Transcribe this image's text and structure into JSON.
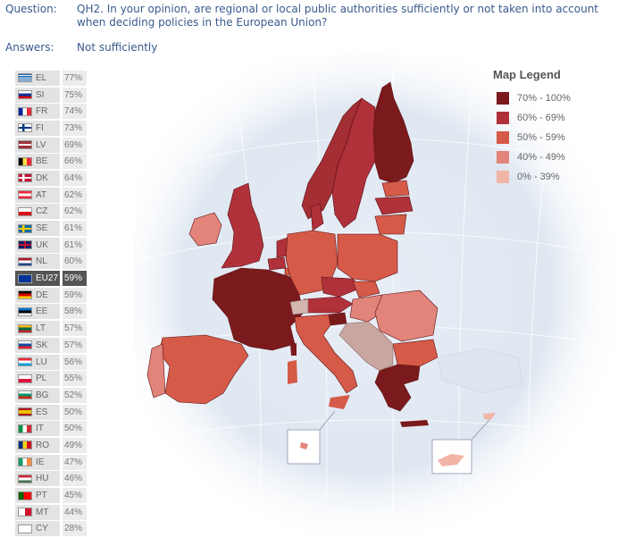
{
  "header": {
    "question_label": "Question:",
    "question_text": "QH2. In your opinion, are regional or local public authorities sufficiently or not taken into account when deciding policies in the European Union?",
    "answers_label": "Answers:",
    "answers_text": "Not sufficiently"
  },
  "legend": {
    "title": "Map Legend",
    "items": [
      {
        "label": "70% - 100%",
        "color": "#7b1a1c"
      },
      {
        "label": "60% - 69%",
        "color": "#b0313a"
      },
      {
        "label": "50% - 59%",
        "color": "#d55a48"
      },
      {
        "label": "40% - 49%",
        "color": "#e2847a"
      },
      {
        "label": "0% - 39%",
        "color": "#f1b5a8"
      }
    ]
  },
  "countries": [
    {
      "code": "EL",
      "value": "77%",
      "flag": "greece-flag-icon"
    },
    {
      "code": "SI",
      "value": "75%",
      "flag": "slovenia-flag-icon"
    },
    {
      "code": "FR",
      "value": "74%",
      "flag": "france-flag-icon"
    },
    {
      "code": "FI",
      "value": "73%",
      "flag": "finland-flag-icon"
    },
    {
      "code": "LV",
      "value": "69%",
      "flag": "latvia-flag-icon"
    },
    {
      "code": "BE",
      "value": "66%",
      "flag": "belgium-flag-icon"
    },
    {
      "code": "DK",
      "value": "64%",
      "flag": "denmark-flag-icon"
    },
    {
      "code": "AT",
      "value": "62%",
      "flag": "austria-flag-icon"
    },
    {
      "code": "CZ",
      "value": "62%",
      "flag": "czech-flag-icon"
    },
    {
      "code": "SE",
      "value": "61%",
      "flag": "sweden-flag-icon"
    },
    {
      "code": "UK",
      "value": "61%",
      "flag": "uk-flag-icon"
    },
    {
      "code": "NL",
      "value": "60%",
      "flag": "netherlands-flag-icon"
    },
    {
      "code": "EU27",
      "value": "59%",
      "flag": "eu-flag-icon"
    },
    {
      "code": "DE",
      "value": "59%",
      "flag": "germany-flag-icon"
    },
    {
      "code": "EE",
      "value": "58%",
      "flag": "estonia-flag-icon"
    },
    {
      "code": "LT",
      "value": "57%",
      "flag": "lithuania-flag-icon"
    },
    {
      "code": "SK",
      "value": "57%",
      "flag": "slovakia-flag-icon"
    },
    {
      "code": "LU",
      "value": "56%",
      "flag": "luxembourg-flag-icon"
    },
    {
      "code": "PL",
      "value": "55%",
      "flag": "poland-flag-icon"
    },
    {
      "code": "BG",
      "value": "52%",
      "flag": "bulgaria-flag-icon"
    },
    {
      "code": "ES",
      "value": "50%",
      "flag": "spain-flag-icon"
    },
    {
      "code": "IT",
      "value": "50%",
      "flag": "italy-flag-icon"
    },
    {
      "code": "RO",
      "value": "49%",
      "flag": "romania-flag-icon"
    },
    {
      "code": "IE",
      "value": "47%",
      "flag": "ireland-flag-icon"
    },
    {
      "code": "HU",
      "value": "46%",
      "flag": "hungary-flag-icon"
    },
    {
      "code": "PT",
      "value": "45%",
      "flag": "portugal-flag-icon"
    },
    {
      "code": "MT",
      "value": "44%",
      "flag": "malta-flag-icon"
    },
    {
      "code": "CY",
      "value": "28%",
      "flag": "cyprus-flag-icon"
    }
  ]
}
